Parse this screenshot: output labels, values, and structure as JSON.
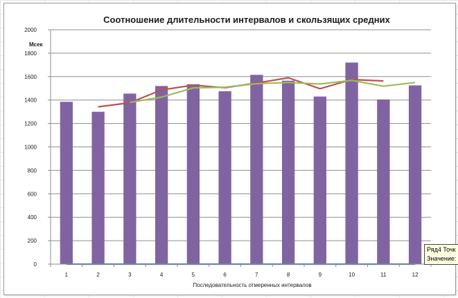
{
  "chart_data": {
    "type": "bar",
    "title": "Соотношение длительности интервалов и скользящих средних",
    "xlabel": "Последовательность  отмеренных  интервалов",
    "ylabel": "Мсек",
    "ylim": [
      0,
      2000
    ],
    "yticks": [
      0,
      200,
      400,
      600,
      800,
      1000,
      1200,
      1400,
      1600,
      1800,
      2000
    ],
    "grid": true,
    "legend": "none",
    "categories": [
      "1",
      "2",
      "3",
      "4",
      "5",
      "6",
      "7",
      "8",
      "9",
      "10",
      "11",
      "12"
    ],
    "series": [
      {
        "type": "bar",
        "color": "#8064a2",
        "values": [
          1385,
          1300,
          1455,
          1520,
          1535,
          1475,
          1615,
          1565,
          1430,
          1720,
          1405,
          1525
        ]
      },
      {
        "type": "line",
        "color": "#c0504d",
        "values": [
          null,
          1342,
          1377,
          1487,
          1527,
          1505,
          1545,
          1590,
          1497,
          1575,
          1563,
          null
        ]
      },
      {
        "type": "line",
        "color": "#9bbb59",
        "values": [
          null,
          null,
          1380,
          1425,
          1503,
          1510,
          1540,
          1550,
          1537,
          1568,
          1518,
          1550
        ]
      },
      {
        "type": "line",
        "color": "#4f81bd",
        "values": [
          0,
          0,
          0,
          0,
          0,
          0,
          0,
          0,
          0,
          0,
          0,
          0
        ]
      }
    ]
  },
  "tooltip": {
    "line1": "Ряд4 Точк",
    "line2": "Значение:"
  }
}
